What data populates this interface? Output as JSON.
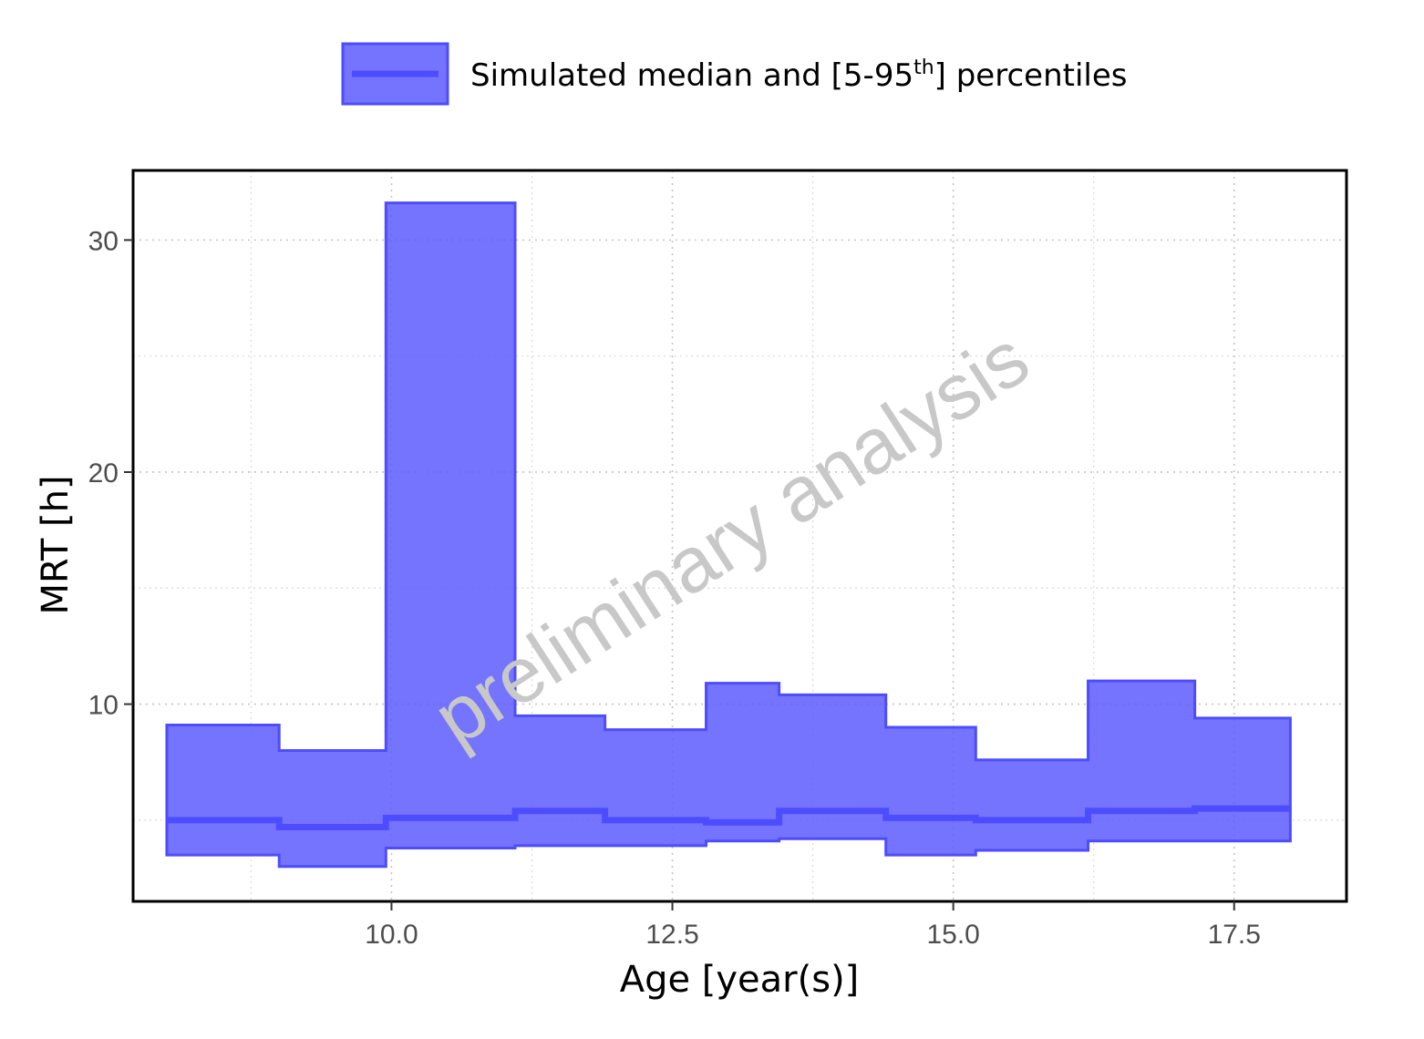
{
  "chart_data": {
    "type": "area",
    "step": true,
    "xlabel": "Age [year(s)]",
    "ylabel": "MRT [h]",
    "xlim": [
      7.7,
      18.5
    ],
    "ylim": [
      1.5,
      33
    ],
    "x_ticks": [
      10.0,
      12.5,
      15.0,
      17.5
    ],
    "x_tick_labels": [
      "10.0",
      "12.5",
      "15.0",
      "17.5"
    ],
    "y_ticks": [
      10,
      20,
      30
    ],
    "y_tick_labels": [
      "10",
      "20",
      "30"
    ],
    "grid": true,
    "legend": {
      "position": "top",
      "label_main": "Simulated median and [5-95",
      "label_sup": "th",
      "label_end": "] percentiles"
    },
    "watermark": "preliminary analysis",
    "colors": {
      "band": "#5c5cff",
      "line": "#4d4dff"
    },
    "bins": [
      {
        "x0": 8.0,
        "x1": 9.0,
        "median": 5.0,
        "p5": 3.5,
        "p95": 9.1
      },
      {
        "x0": 9.0,
        "x1": 9.95,
        "median": 4.7,
        "p5": 3.0,
        "p95": 8.0
      },
      {
        "x0": 9.95,
        "x1": 11.1,
        "median": 5.1,
        "p5": 3.8,
        "p95": 31.6
      },
      {
        "x0": 11.1,
        "x1": 11.9,
        "median": 5.4,
        "p5": 3.9,
        "p95": 9.5
      },
      {
        "x0": 11.9,
        "x1": 12.8,
        "median": 5.0,
        "p5": 3.9,
        "p95": 8.9
      },
      {
        "x0": 12.8,
        "x1": 13.45,
        "median": 4.9,
        "p5": 4.1,
        "p95": 10.9
      },
      {
        "x0": 13.45,
        "x1": 14.4,
        "median": 5.4,
        "p5": 4.2,
        "p95": 10.4
      },
      {
        "x0": 14.4,
        "x1": 15.2,
        "median": 5.1,
        "p5": 3.5,
        "p95": 9.0
      },
      {
        "x0": 15.2,
        "x1": 16.2,
        "median": 5.0,
        "p5": 3.7,
        "p95": 7.6
      },
      {
        "x0": 16.2,
        "x1": 17.15,
        "median": 5.4,
        "p5": 4.1,
        "p95": 11.0
      },
      {
        "x0": 17.15,
        "x1": 18.0,
        "median": 5.5,
        "p5": 4.1,
        "p95": 9.4
      }
    ]
  }
}
